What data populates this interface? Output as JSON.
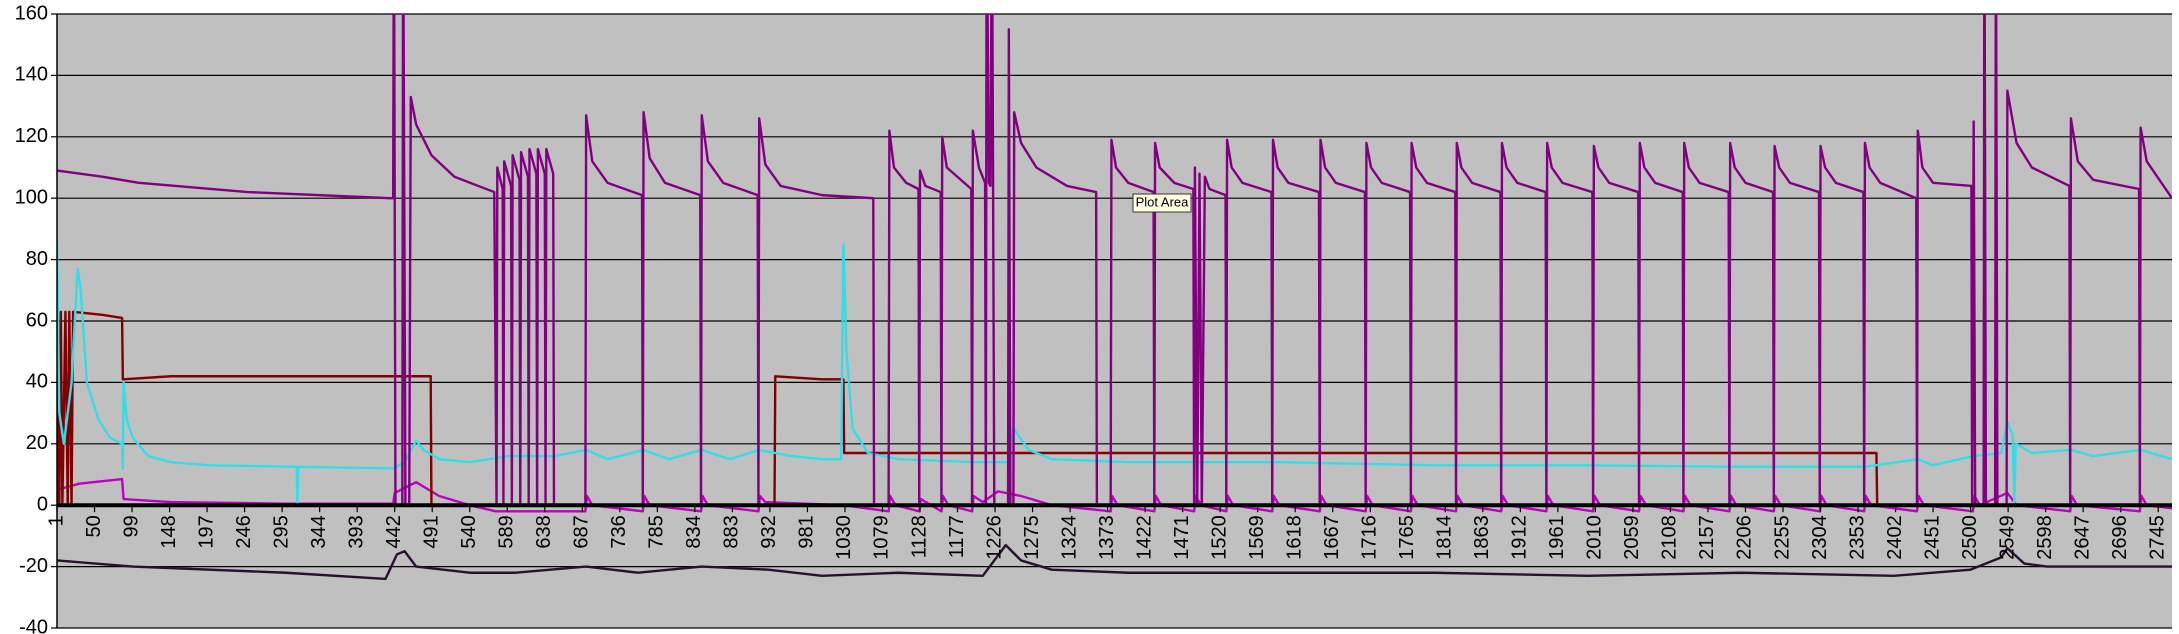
{
  "chart_data": {
    "type": "line",
    "annotation": "Plot Area",
    "xlim": [
      1,
      2763
    ],
    "xticks": [
      1,
      50,
      99,
      148,
      197,
      246,
      295,
      344,
      393,
      442,
      491,
      540,
      589,
      638,
      687,
      736,
      785,
      834,
      883,
      932,
      981,
      1030,
      1079,
      1128,
      1177,
      1226,
      1275,
      1324,
      1373,
      1422,
      1471,
      1520,
      1569,
      1618,
      1667,
      1716,
      1765,
      1814,
      1863,
      1912,
      1961,
      2010,
      2059,
      2108,
      2157,
      2206,
      2255,
      2304,
      2353,
      2402,
      2451,
      2500,
      2549,
      2598,
      2647,
      2696,
      2745
    ],
    "ylim": [
      -40,
      160
    ],
    "yticks": [
      -40,
      -20,
      0,
      20,
      40,
      60,
      80,
      100,
      120,
      140,
      160
    ],
    "grid": true,
    "series": [
      {
        "color": "#c000c0",
        "x": [
          1,
          30,
          86,
          88,
          150,
          300,
          440,
          442,
          470,
          500,
          540,
          574,
          650,
          691,
          693,
          700,
          766,
          768,
          775,
          842,
          844,
          851,
          917,
          919,
          926,
          1028,
          1087,
          1089,
          1096,
          1127,
          1129,
          1156,
          1158,
          1165,
          1196,
          1198,
          1210,
          1230,
          1260,
          1300,
          1377,
          1379,
          1386,
          1434,
          1436,
          1443,
          1486,
          1488,
          1495,
          1528,
          1530,
          1537,
          1588,
          1590,
          1597,
          1650,
          1652,
          1659,
          1710,
          1712,
          1719,
          1769,
          1771,
          1778,
          1828,
          1830,
          1837,
          1887,
          1889,
          1896,
          1946,
          1948,
          1955,
          2007,
          2009,
          2016,
          2067,
          2069,
          2076,
          2125,
          2127,
          2134,
          2185,
          2187,
          2194,
          2243,
          2245,
          2252,
          2303,
          2305,
          2312,
          2361,
          2363,
          2370,
          2430,
          2432,
          2439,
          2503,
          2505,
          2512,
          2548,
          2560,
          2630,
          2632,
          2639,
          2721,
          2723,
          2730,
          2763
        ],
        "values": [
          5,
          7,
          8.5,
          2,
          1,
          0.5,
          0.5,
          4,
          7.5,
          3,
          0,
          -2,
          -2,
          -2,
          3,
          0,
          -2,
          3,
          0,
          -2,
          3,
          0,
          -2,
          3,
          1,
          0,
          -2,
          3,
          0,
          -2,
          2,
          -2,
          3,
          0,
          -2,
          3,
          1,
          4.5,
          3,
          0,
          -2,
          3,
          0,
          -2,
          3,
          0,
          -2,
          3,
          0,
          -2,
          3,
          0,
          -2,
          3,
          0,
          -2,
          3,
          0,
          -2,
          3,
          0,
          -2,
          3,
          0,
          -2,
          3,
          0,
          -2,
          3,
          0,
          -2,
          3,
          0,
          -2,
          3,
          0,
          -2,
          3,
          0,
          -2,
          3,
          0,
          -2,
          3,
          0,
          -2,
          3,
          0,
          -2,
          3,
          0,
          -2,
          3,
          0,
          -2,
          3,
          0,
          -2,
          3,
          0,
          4,
          0,
          -2,
          3,
          0,
          -2,
          3,
          0,
          -1
        ]
      },
      {
        "color": "#800000",
        "x": [
          1,
          2,
          4,
          6,
          8,
          12,
          15,
          17,
          20,
          22,
          60,
          86,
          87,
          150,
          300,
          489,
          490,
          938,
          939,
          1000,
          1028,
          1029,
          1500,
          2377,
          2378,
          2763
        ],
        "values": [
          0,
          63,
          0,
          63,
          0,
          63,
          0,
          63,
          0,
          63,
          62,
          61,
          41,
          42,
          42,
          42,
          0,
          0,
          42,
          41,
          41,
          17,
          17,
          17,
          0,
          0
        ]
      },
      {
        "color": "#33dde8",
        "x": [
          1,
          4,
          10,
          20,
          28,
          32,
          40,
          55,
          70,
          86,
          87,
          88,
          92,
          100,
          120,
          150,
          200,
          314,
          315,
          316,
          440,
          455,
          470,
          480,
          500,
          540,
          590,
          650,
          692,
          720,
          767,
          800,
          843,
          880,
          918,
          960,
          1000,
          1025,
          1028,
          1032,
          1040,
          1060,
          1100,
          1200,
          1244,
          1250,
          1270,
          1300,
          1400,
          1600,
          1800,
          2000,
          2200,
          2362,
          2431,
          2450,
          2504,
          2540,
          2548,
          2555,
          2557,
          2559,
          2580,
          2631,
          2660,
          2722,
          2763
        ],
        "values": [
          86,
          30,
          20,
          40,
          77,
          70,
          40,
          28,
          22,
          20,
          12,
          40,
          28,
          22,
          16,
          14,
          13,
          12.5,
          0,
          12.5,
          12,
          14,
          21,
          18,
          15,
          14,
          16,
          16,
          18,
          15,
          18,
          15,
          18,
          15,
          18,
          16,
          15,
          15,
          85,
          50,
          25,
          17,
          15,
          14,
          14,
          25,
          18,
          15,
          14,
          14,
          13,
          13,
          12.5,
          12.5,
          15,
          13,
          16,
          17,
          27,
          23,
          0,
          20,
          17,
          18,
          16,
          18,
          15
        ]
      },
      {
        "color": "#800080",
        "x": [
          1,
          60,
          108,
          250,
          435,
          440,
          441,
          443,
          452,
          453,
          456,
          461,
          463,
          470,
          490,
          520,
          572,
          575,
          576,
          583,
          584,
          585,
          594,
          595,
          596,
          605,
          606,
          607,
          616,
          617,
          618,
          627,
          628,
          629,
          638,
          639,
          640,
          649,
          650,
          691,
          692,
          700,
          720,
          765,
          766,
          767,
          775,
          795,
          841,
          842,
          843,
          851,
          871,
          916,
          917,
          918,
          926,
          946,
          1000,
          1067,
          1068,
          1087,
          1088,
          1094,
          1110,
          1126,
          1127,
          1128,
          1135,
          1155,
          1156,
          1157,
          1163,
          1195,
          1196,
          1197,
          1205,
          1213,
          1214,
          1215,
          1218,
          1220,
          1222,
          1225,
          1243,
          1244,
          1246,
          1250,
          1251,
          1260,
          1280,
          1320,
          1358,
          1359,
          1377,
          1378,
          1384,
          1400,
          1433,
          1434,
          1435,
          1441,
          1460,
          1485,
          1486,
          1487,
          1490,
          1493,
          1496,
          1500,
          1506,
          1527,
          1528,
          1529,
          1535,
          1549,
          1587,
          1588,
          1589,
          1595,
          1609,
          1649,
          1650,
          1651,
          1657,
          1671,
          1709,
          1710,
          1711,
          1717,
          1731,
          1768,
          1769,
          1770,
          1776,
          1790,
          1827,
          1828,
          1829,
          1835,
          1849,
          1886,
          1887,
          1888,
          1894,
          1908,
          1945,
          1946,
          1947,
          1953,
          1967,
          2006,
          2007,
          2008,
          2014,
          2028,
          2066,
          2067,
          2068,
          2074,
          2088,
          2124,
          2125,
          2126,
          2132,
          2146,
          2184,
          2185,
          2186,
          2192,
          2206,
          2242,
          2243,
          2244,
          2250,
          2264,
          2302,
          2303,
          2304,
          2310,
          2324,
          2360,
          2361,
          2362,
          2368,
          2382,
          2429,
          2430,
          2431,
          2437,
          2451,
          2501,
          2502,
          2504,
          2506,
          2517,
          2518,
          2520,
          2532,
          2533,
          2535,
          2547,
          2548,
          2560,
          2580,
          2629,
          2630,
          2631,
          2640,
          2660,
          2720,
          2721,
          2722,
          2730,
          2763
        ],
        "values": [
          109,
          107,
          105,
          102,
          100,
          100,
          200,
          0,
          0,
          200,
          0,
          0,
          133,
          124,
          114,
          107,
          102,
          0,
          110,
          103,
          0,
          112,
          104,
          0,
          114,
          106,
          0,
          115,
          107,
          0,
          116,
          108,
          0,
          116,
          108,
          0,
          116,
          108,
          0,
          0,
          127,
          112,
          105,
          101,
          0,
          128,
          113,
          105,
          101,
          0,
          127,
          112,
          105,
          101,
          0,
          126,
          111,
          104,
          101,
          100,
          0,
          0,
          122,
          110,
          105,
          103,
          0,
          109,
          104,
          102,
          0,
          120,
          110,
          103,
          0,
          122,
          110,
          105,
          0,
          200,
          105,
          104,
          200,
          0,
          0,
          155,
          0,
          0,
          128,
          118,
          110,
          104,
          102,
          0,
          0,
          119,
          110,
          105,
          102,
          0,
          118,
          110,
          105,
          103,
          0,
          110,
          0,
          108,
          0,
          107,
          103,
          101,
          0,
          119,
          110,
          105,
          102,
          0,
          119,
          110,
          105,
          102,
          0,
          119,
          110,
          105,
          102,
          0,
          118,
          110,
          105,
          102,
          0,
          118,
          110,
          105,
          102,
          0,
          118,
          110,
          105,
          102,
          0,
          118,
          110,
          105,
          102,
          0,
          118,
          110,
          105,
          102,
          0,
          117,
          110,
          105,
          102,
          0,
          118,
          110,
          105,
          102,
          0,
          118,
          110,
          105,
          102,
          0,
          118,
          110,
          105,
          102,
          0,
          117,
          110,
          105,
          102,
          0,
          117,
          110,
          105,
          102,
          0,
          118,
          110,
          105,
          100,
          0,
          122,
          110,
          105,
          104,
          0,
          125,
          0,
          0,
          200,
          0,
          0,
          200,
          0,
          0,
          135,
          118,
          110,
          104,
          0,
          126,
          112,
          106,
          103,
          0,
          123,
          112,
          100
        ]
      },
      {
        "color": "#2a1030",
        "x": [
          1,
          100,
          300,
          430,
          445,
          455,
          470,
          540,
          600,
          692,
          760,
          843,
          930,
          1000,
          1100,
          1210,
          1240,
          1260,
          1300,
          1400,
          1600,
          1800,
          2000,
          2200,
          2400,
          2500,
          2540,
          2548,
          2570,
          2600,
          2700,
          2763
        ],
        "values": [
          -18,
          -20,
          -22,
          -24,
          -16,
          -15,
          -20,
          -22,
          -22,
          -20,
          -22,
          -20,
          -21,
          -23,
          -22,
          -23,
          -13,
          -18,
          -21,
          -22,
          -22,
          -22,
          -23,
          -22,
          -23,
          -21,
          -17,
          -14,
          -19,
          -20,
          -20,
          -20
        ]
      }
    ]
  }
}
